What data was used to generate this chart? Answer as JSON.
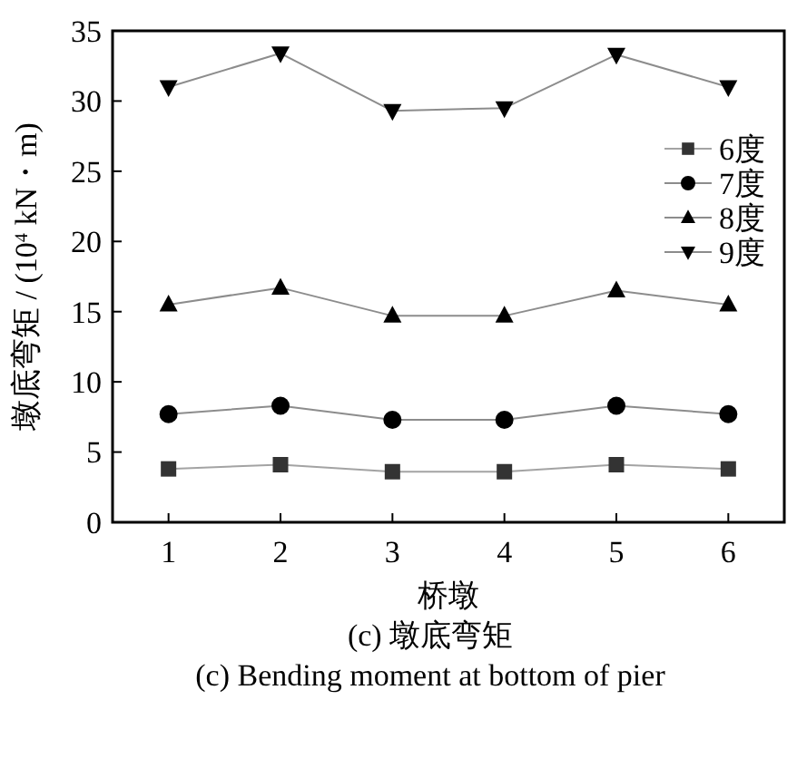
{
  "chart_data": {
    "type": "line",
    "xlabel": "桥墩",
    "ylabel": "墩底弯矩 / (10$^{4}$ kN・m)",
    "x": [
      1,
      2,
      3,
      4,
      5,
      6
    ],
    "xlim": [
      0.5,
      6.5
    ],
    "xticks": [
      1,
      2,
      3,
      4,
      5,
      6
    ],
    "ylim": [
      0,
      35
    ],
    "yticks": [
      0,
      5,
      10,
      15,
      20,
      25,
      30,
      35
    ],
    "legend": "right",
    "grid": false,
    "line_style": "solid",
    "series": [
      {
        "name": "6度",
        "color": "#333333",
        "marker": "square",
        "values": [
          3.8,
          4.1,
          3.6,
          3.6,
          4.1,
          3.8
        ]
      },
      {
        "name": "7度",
        "color": "#000000",
        "marker": "circle",
        "values": [
          7.7,
          8.3,
          7.3,
          7.3,
          8.3,
          7.7
        ]
      },
      {
        "name": "8度",
        "color": "#000000",
        "marker": "triangle",
        "values": [
          15.5,
          16.7,
          14.7,
          14.7,
          16.5,
          15.5
        ]
      },
      {
        "name": "9度",
        "color": "#000000",
        "marker": "triangle-down",
        "values": [
          31.0,
          33.4,
          29.3,
          29.5,
          33.3,
          31.0
        ]
      }
    ],
    "annotations": [
      "(c) 墩底弯矩",
      "(c) Bending moment at bottom of pier"
    ]
  }
}
